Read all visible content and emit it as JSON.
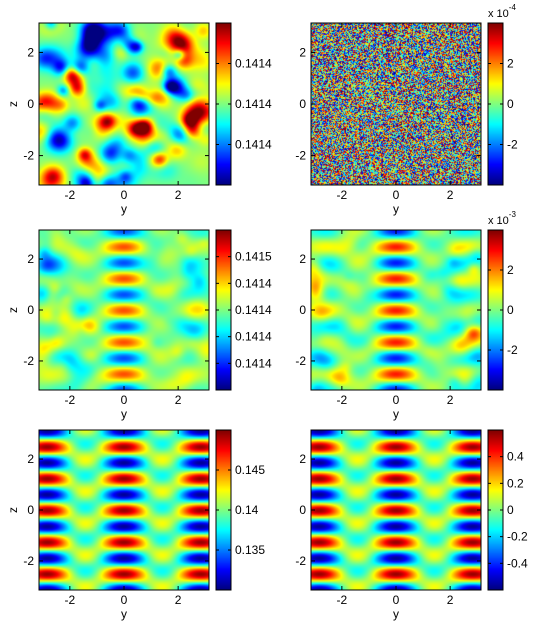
{
  "chart_data": [
    {
      "type": "heatmap",
      "panel": "row1-left",
      "xlabel": "y",
      "ylabel": "z",
      "xticks": [
        "-2",
        "0",
        "2"
      ],
      "yticks": [
        "2",
        "0",
        "-2"
      ],
      "xlim": [
        -3.14,
        3.14
      ],
      "ylim": [
        -3.14,
        3.14
      ],
      "colorbar": {
        "ticks": [
          "0.1414",
          "0.1414",
          "0.1414"
        ],
        "exponent": "",
        "colormap": "jet"
      },
      "pattern": {
        "kind": "speckle",
        "seed": 11,
        "scale": 1.0,
        "band": 0
      }
    },
    {
      "type": "heatmap",
      "panel": "row1-right",
      "xlabel": "y",
      "ylabel": "",
      "xticks": [
        "-2",
        "0",
        "2"
      ],
      "yticks": [
        "2",
        "0",
        "-2"
      ],
      "xlim": [
        -3.14,
        3.14
      ],
      "ylim": [
        -3.14,
        3.14
      ],
      "colorbar": {
        "ticks": [
          "2",
          "0",
          "-2"
        ],
        "exponent": "x 10^-4",
        "colormap": "jet"
      },
      "pattern": {
        "kind": "noise",
        "seed": 23,
        "scale": 1.0,
        "band": 0
      }
    },
    {
      "type": "heatmap",
      "panel": "row2-left",
      "xlabel": "y",
      "ylabel": "z",
      "xticks": [
        "-2",
        "0",
        "2"
      ],
      "yticks": [
        "2",
        "0",
        "-2"
      ],
      "xlim": [
        -3.14,
        3.14
      ],
      "ylim": [
        -3.14,
        3.14
      ],
      "colorbar": {
        "ticks": [
          "0.1415",
          "0.1414",
          "0.1414",
          "0.1414",
          "0.1414"
        ],
        "exponent": "",
        "colormap": "jet"
      },
      "pattern": {
        "kind": "lattice-band",
        "seed": 37,
        "scale": 0.55,
        "band": 1.6
      }
    },
    {
      "type": "heatmap",
      "panel": "row2-right",
      "xlabel": "y",
      "ylabel": "",
      "xticks": [
        "-2",
        "0",
        "2"
      ],
      "yticks": [
        "2",
        "0",
        "-2"
      ],
      "xlim": [
        -3.14,
        3.14
      ],
      "ylim": [
        -3.14,
        3.14
      ],
      "colorbar": {
        "ticks": [
          "2",
          "0",
          "-2"
        ],
        "exponent": "x 10^-3",
        "colormap": "jet"
      },
      "pattern": {
        "kind": "lattice-band",
        "seed": 41,
        "scale": 0.65,
        "band": 1.9
      }
    },
    {
      "type": "heatmap",
      "panel": "row3-left",
      "xlabel": "y",
      "ylabel": "z",
      "xticks": [
        "-2",
        "0",
        "2"
      ],
      "yticks": [
        "2",
        "0",
        "-2"
      ],
      "xlim": [
        -3.14,
        3.14
      ],
      "ylim": [
        -3.14,
        3.14
      ],
      "colorbar": {
        "ticks": [
          "0.145",
          "0.14",
          "0.135"
        ],
        "exponent": "",
        "colormap": "jet"
      },
      "pattern": {
        "kind": "lattice-full",
        "seed": 53,
        "scale": 1.0,
        "band": 0
      }
    },
    {
      "type": "heatmap",
      "panel": "row3-right",
      "xlabel": "y",
      "ylabel": "",
      "xticks": [
        "-2",
        "0",
        "2"
      ],
      "yticks": [
        "2",
        "0",
        "-2"
      ],
      "xlim": [
        -3.14,
        3.14
      ],
      "ylim": [
        -3.14,
        3.14
      ],
      "colorbar": {
        "ticks": [
          "0.4",
          "0.2",
          "0",
          "-0.2",
          "-0.4"
        ],
        "exponent": "",
        "colormap": "jet"
      },
      "pattern": {
        "kind": "lattice-full",
        "seed": 67,
        "scale": 1.0,
        "band": 0
      }
    }
  ]
}
